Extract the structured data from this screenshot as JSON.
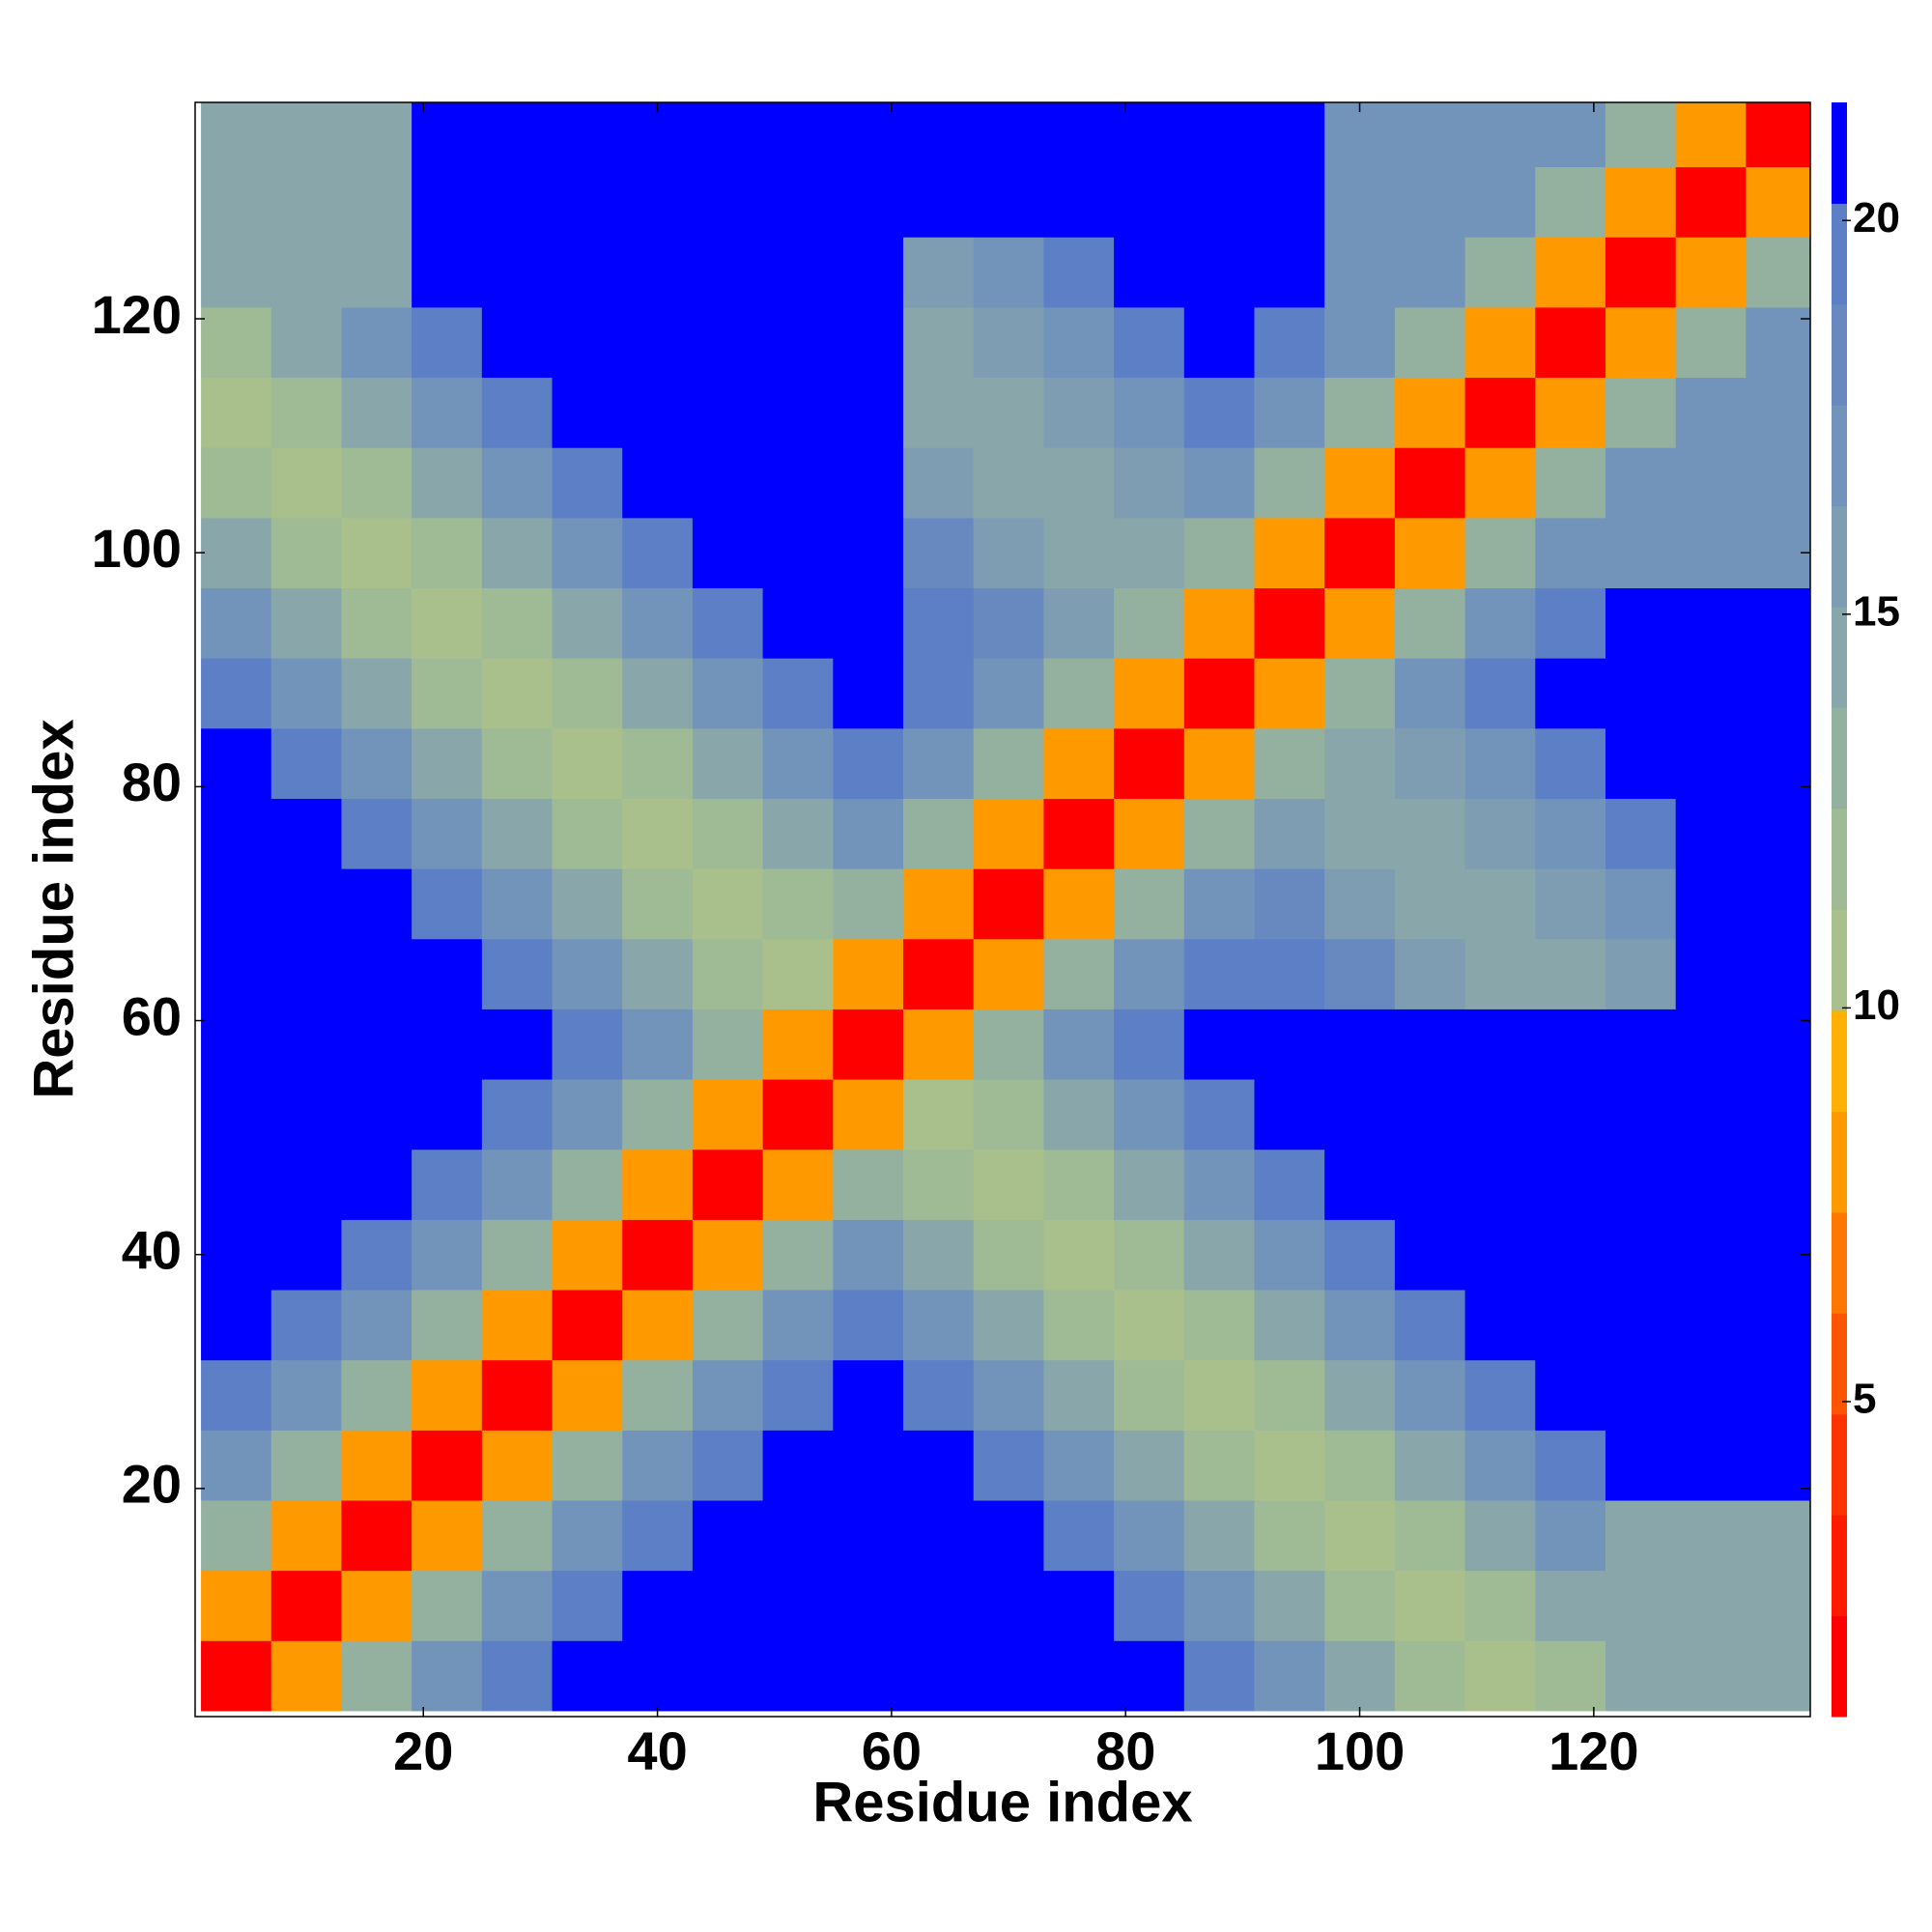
{
  "chart_data": {
    "type": "heatmap",
    "xlabel": "Residue index",
    "ylabel": "Residue index",
    "x": [
      4,
      10,
      16,
      22,
      28,
      34,
      40,
      46,
      52,
      58,
      64,
      70,
      76,
      82,
      88,
      94,
      100,
      106,
      112,
      118,
      124,
      130,
      136
    ],
    "y": [
      4,
      10,
      16,
      22,
      28,
      34,
      40,
      46,
      52,
      58,
      64,
      70,
      76,
      82,
      88,
      94,
      100,
      106,
      112,
      118,
      124,
      130,
      136
    ],
    "z": [
      [
        2,
        8,
        13,
        17,
        20,
        22,
        22,
        22,
        22,
        22,
        22,
        22,
        22,
        22,
        19,
        17,
        14,
        12,
        10,
        12,
        15,
        15,
        15
      ],
      [
        8,
        2,
        8,
        13,
        17,
        20,
        22,
        22,
        22,
        22,
        22,
        22,
        22,
        19,
        17,
        14,
        12,
        10,
        12,
        14,
        15,
        15,
        15
      ],
      [
        13,
        8,
        2,
        8,
        13,
        17,
        20,
        22,
        22,
        22,
        22,
        22,
        19,
        17,
        14,
        12,
        10,
        12,
        14,
        17,
        15,
        15,
        15
      ],
      [
        17,
        13,
        8,
        2,
        8,
        13,
        17,
        20,
        22,
        22,
        22,
        19,
        17,
        14,
        12,
        10,
        12,
        14,
        17,
        19,
        22,
        22,
        22
      ],
      [
        20,
        17,
        13,
        8,
        2,
        8,
        13,
        17,
        20,
        22,
        19,
        17,
        14,
        12,
        10,
        12,
        14,
        17,
        19,
        22,
        22,
        22,
        22
      ],
      [
        22,
        20,
        17,
        13,
        8,
        2,
        8,
        13,
        17,
        19,
        17,
        14,
        12,
        10,
        12,
        14,
        17,
        19,
        22,
        22,
        22,
        22,
        22
      ],
      [
        22,
        22,
        20,
        17,
        13,
        8,
        2,
        8,
        13,
        17,
        14,
        12,
        10,
        12,
        14,
        17,
        19,
        22,
        22,
        22,
        22,
        22,
        22
      ],
      [
        22,
        22,
        22,
        20,
        17,
        13,
        8,
        2,
        8,
        13,
        12,
        10,
        12,
        14,
        17,
        19,
        22,
        22,
        22,
        22,
        22,
        22,
        22
      ],
      [
        22,
        22,
        22,
        22,
        20,
        17,
        13,
        8,
        2,
        8,
        10,
        12,
        14,
        17,
        19,
        22,
        22,
        22,
        22,
        22,
        22,
        22,
        22
      ],
      [
        22,
        22,
        22,
        22,
        22,
        19,
        17,
        13,
        8,
        2,
        8,
        13,
        17,
        19,
        22,
        22,
        22,
        22,
        22,
        22,
        22,
        22,
        22
      ],
      [
        22,
        22,
        22,
        22,
        19,
        17,
        14,
        12,
        10,
        8,
        2,
        8,
        13,
        17,
        20,
        20,
        18,
        16,
        14,
        14,
        16,
        22,
        22
      ],
      [
        22,
        22,
        22,
        19,
        17,
        14,
        12,
        10,
        12,
        13,
        8,
        2,
        8,
        13,
        17,
        18,
        16,
        14,
        14,
        16,
        17,
        22,
        22
      ],
      [
        22,
        22,
        19,
        17,
        14,
        12,
        10,
        12,
        14,
        17,
        13,
        8,
        2,
        8,
        13,
        16,
        14,
        14,
        16,
        17,
        19,
        22,
        22
      ],
      [
        22,
        19,
        17,
        14,
        12,
        10,
        12,
        14,
        17,
        19,
        17,
        13,
        8,
        2,
        8,
        13,
        14,
        16,
        17,
        19,
        22,
        22,
        22
      ],
      [
        19,
        17,
        14,
        12,
        10,
        12,
        14,
        17,
        19,
        22,
        20,
        17,
        13,
        8,
        2,
        8,
        13,
        17,
        19,
        22,
        22,
        22,
        22
      ],
      [
        17,
        14,
        12,
        10,
        12,
        14,
        17,
        19,
        22,
        22,
        20,
        18,
        16,
        13,
        8,
        2,
        8,
        13,
        17,
        20,
        22,
        22,
        22
      ],
      [
        14,
        12,
        10,
        12,
        14,
        17,
        19,
        22,
        22,
        22,
        18,
        16,
        14,
        14,
        13,
        8,
        2,
        8,
        13,
        17,
        17,
        17,
        17
      ],
      [
        12,
        10,
        12,
        14,
        17,
        19,
        22,
        22,
        22,
        22,
        16,
        14,
        14,
        16,
        17,
        13,
        8,
        2,
        8,
        13,
        17,
        17,
        17
      ],
      [
        10,
        12,
        14,
        17,
        19,
        22,
        22,
        22,
        22,
        22,
        14,
        14,
        16,
        17,
        19,
        17,
        13,
        8,
        2,
        8,
        13,
        17,
        17
      ],
      [
        12,
        14,
        17,
        19,
        22,
        22,
        22,
        22,
        22,
        22,
        14,
        16,
        17,
        19,
        22,
        20,
        17,
        13,
        8,
        2,
        8,
        13,
        17
      ],
      [
        15,
        15,
        15,
        22,
        22,
        22,
        22,
        22,
        22,
        22,
        16,
        17,
        19,
        22,
        22,
        22,
        17,
        17,
        13,
        8,
        2,
        8,
        13
      ],
      [
        15,
        15,
        15,
        22,
        22,
        22,
        22,
        22,
        22,
        22,
        22,
        22,
        22,
        22,
        22,
        22,
        17,
        17,
        17,
        13,
        8,
        2,
        8
      ],
      [
        15,
        15,
        15,
        22,
        22,
        22,
        22,
        22,
        22,
        22,
        22,
        22,
        22,
        22,
        22,
        22,
        17,
        17,
        17,
        17,
        13,
        8,
        2
      ]
    ],
    "xlim": [
      0.5,
      138.5
    ],
    "ylim": [
      0.5,
      138.5
    ],
    "xticks": [
      20,
      40,
      60,
      80,
      100,
      120
    ],
    "yticks": [
      20,
      40,
      60,
      80,
      100,
      120
    ],
    "colorbar": {
      "zlim": [
        1,
        21.5
      ],
      "ticks": [
        5,
        10,
        15,
        20
      ],
      "colors": [
        "#ff0000",
        "#ff1a00",
        "#ff3300",
        "#ff5500",
        "#ff7700",
        "#ff9900",
        "#ffb000",
        "#a9c08c",
        "#9fbb95",
        "#94b1a0",
        "#89a7aa",
        "#7e9db3",
        "#7394ba",
        "#6889c0",
        "#5c7fc6",
        "#0000ff"
      ]
    },
    "grid": false
  }
}
